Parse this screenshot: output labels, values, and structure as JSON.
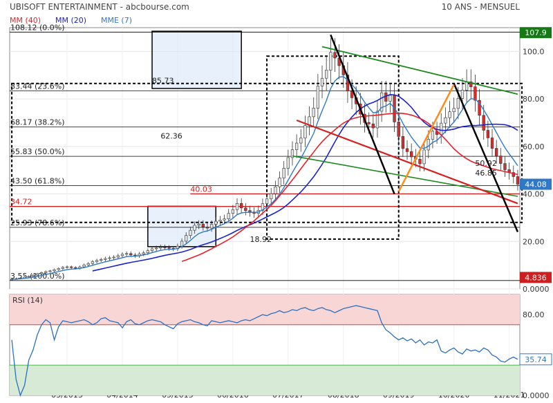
{
  "header": {
    "company": "UBISOFT ENTERTAINMENT - abcbourse.com",
    "period": "10 ANS - MENSUEL"
  },
  "legend": [
    {
      "label": "MM (40)",
      "color": "#e8202a"
    },
    {
      "label": "MM (20)",
      "color": "#1a22cc"
    },
    {
      "label": "MME (7)",
      "color": "#2f78c8"
    }
  ],
  "rsi_label": "RSI (14)",
  "colors": {
    "up": "#e6e6e6",
    "down": "#dd2b2b",
    "mm40": "#e8202a",
    "mm20": "#1a22cc",
    "mme7": "#2f78c8",
    "rsi": "#2a6fc0",
    "fib": "#000000",
    "green_line": "#1d8a1d",
    "orange_line": "#ff8c1a",
    "highlight": "#d8e8f8",
    "rsi_overbought": "#f8d6d6",
    "rsi_oversold": "#d6ead6"
  },
  "chart_data": [
    {
      "type": "candlestick",
      "title": "UBISOFT ENTERTAINMENT - abcbourse.com",
      "xlabel": "",
      "ylabel": "",
      "ylim": [
        0,
        110
      ],
      "y_ticks": [
        0,
        20,
        40,
        60,
        80,
        100
      ],
      "y_tick_labels": [
        "0.0000",
        "20.00",
        "40.00",
        "60.00",
        "80.00",
        "100.0"
      ],
      "x_ticks": [
        "03/2013",
        "04/2014",
        "05/2015",
        "06/2016",
        "07/2017",
        "08/2018",
        "09/2019",
        "10/2020",
        "11/2021"
      ],
      "x_tick_positions": [
        13,
        26,
        39,
        52,
        65,
        78,
        91,
        104,
        117
      ],
      "months": 120,
      "close": [
        4.1,
        4.3,
        4.6,
        5.0,
        5.3,
        5.8,
        6.4,
        6.9,
        7.3,
        7.6,
        8.1,
        8.6,
        9.1,
        9.3,
        9.0,
        8.7,
        9.3,
        10.1,
        10.7,
        11.5,
        12.0,
        12.4,
        12.8,
        13.1,
        13.4,
        14.0,
        14.6,
        14.9,
        14.3,
        13.9,
        14.7,
        15.2,
        16.1,
        16.9,
        17.2,
        17.6,
        17.4,
        17.1,
        16.9,
        18.0,
        20.1,
        22.5,
        24.7,
        26.8,
        27.3,
        26.1,
        25.6,
        27.2,
        28.5,
        29.0,
        29.5,
        31.8,
        33.4,
        36.0,
        34.1,
        33.0,
        32.4,
        31.8,
        33.1,
        35.9,
        37.9,
        40.1,
        43.0,
        46.7,
        50.8,
        55.3,
        58.6,
        61.4,
        63.5,
        68.8,
        72.5,
        76.1,
        85.4,
        88.7,
        92.1,
        99.6,
        97.2,
        94.0,
        90.1,
        83.3,
        80.5,
        77.9,
        73.6,
        70.1,
        69.5,
        67.8,
        74.8,
        82.6,
        79.0,
        81.5,
        70.3,
        64.2,
        59.1,
        57.8,
        55.6,
        54.6,
        52.7,
        58.5,
        63.0,
        66.4,
        65.0,
        69.8,
        72.1,
        74.6,
        76.0,
        80.2,
        83.7,
        87.2,
        85.1,
        79.4,
        73.1,
        66.8,
        63.6,
        59.2,
        56.0,
        52.8,
        50.2,
        49.0,
        47.3,
        44.08
      ],
      "mm40_start_index": 40,
      "series": [
        {
          "name": "MM (40)",
          "values": [
            11.6,
            12.2,
            12.9,
            13.6,
            14.3,
            15.1,
            16.0,
            16.9,
            17.9,
            18.8,
            19.8,
            20.8,
            21.9,
            23.2,
            24.5,
            25.9,
            27.3,
            28.7,
            30.3,
            31.9,
            33.5,
            35.2,
            37.1,
            39.2,
            41.4,
            43.6,
            45.9,
            48.2,
            50.6,
            53.0,
            55.3,
            57.6,
            59.9,
            62.0,
            63.8,
            65.4,
            67.0,
            68.5,
            69.8,
            70.8,
            71.6,
            72.1,
            72.5,
            72.7,
            72.9,
            73.0,
            73.2,
            73.4,
            73.6,
            73.8,
            73.9,
            74.0,
            73.9,
            73.6,
            73.2,
            72.6,
            71.8,
            70.9,
            69.7,
            68.2,
            66.5,
            64.8,
            63.0,
            61.0,
            59.0,
            57.4,
            56.0,
            54.8,
            53.8,
            53.0,
            52.4,
            51.8,
            51.2,
            50.6,
            50.2,
            49.8,
            49.4,
            49.0,
            48.6,
            48.2
          ]
        },
        {
          "name": "MM (20)",
          "values": []
        },
        {
          "name": "MME (7)",
          "values": []
        }
      ],
      "fibonacci": [
        {
          "label": "108.12 (0.0%)",
          "value": 108.12
        },
        {
          "label": "83.44 (23.6%)",
          "value": 83.44
        },
        {
          "label": "68.17 (38.2%)",
          "value": 68.17
        },
        {
          "label": "55.83 (50.0%)",
          "value": 55.83
        },
        {
          "label": "43.50 (61.8%)",
          "value": 43.5
        },
        {
          "label": "25.93 (78.6%)",
          "value": 25.93
        },
        {
          "label": "3.55 (100.0%)",
          "value": 3.55
        }
      ],
      "annotations": [
        {
          "label": "85.73",
          "value": 85.73,
          "month": 33
        },
        {
          "label": "62.36",
          "value": 62.36,
          "month": 35
        },
        {
          "label": "40.03",
          "value": 40.03,
          "month": 42
        },
        {
          "label": "34.72",
          "value": 34.72,
          "month": 0
        },
        {
          "label": "18.92",
          "value": 18.92,
          "month": 56
        },
        {
          "label": "50.92",
          "value": 50.92,
          "month": 109
        },
        {
          "label": "46.85",
          "value": 46.85,
          "month": 109
        }
      ],
      "price_badges": [
        {
          "label": "107.9",
          "value": 107.9,
          "color": "#157a15"
        },
        {
          "label": "44.08",
          "value": 44.08,
          "color": "#2f78c8"
        },
        {
          "label": "4.836",
          "value": 4.836,
          "color": "#cc1f1f"
        }
      ]
    },
    {
      "type": "line",
      "title": "RSI (14)",
      "ylim": [
        0,
        100
      ],
      "y_ticks": [
        0,
        80
      ],
      "y_tick_labels": [
        "0.0000",
        "80.00"
      ],
      "overbought": 70,
      "oversold": 30,
      "last_value_label": "35.74",
      "values": [
        55,
        16,
        0,
        10,
        35,
        45,
        60,
        70,
        75,
        72,
        55,
        68,
        74,
        73,
        72,
        73,
        74,
        75,
        73,
        70,
        72,
        76,
        77,
        74,
        73,
        72,
        67,
        73,
        75,
        71,
        70,
        72,
        74,
        75,
        74,
        73,
        70,
        68,
        66,
        71,
        73,
        74,
        75,
        73,
        72,
        70,
        69,
        74,
        73,
        72,
        73,
        74,
        73,
        72,
        74,
        75,
        74,
        76,
        78,
        80,
        79,
        81,
        82,
        84,
        82,
        83,
        85,
        84,
        86,
        87,
        85,
        84,
        86,
        87,
        85,
        84,
        82,
        84,
        86,
        87,
        88,
        89,
        88,
        87,
        86,
        85,
        84,
        72,
        65,
        62,
        58,
        55,
        57,
        54,
        56,
        52,
        55,
        50,
        53,
        52,
        55,
        44,
        42,
        45,
        47,
        43,
        41,
        46,
        44,
        45,
        43,
        47,
        45,
        40,
        38,
        34,
        33,
        36,
        38,
        35.74
      ]
    }
  ]
}
